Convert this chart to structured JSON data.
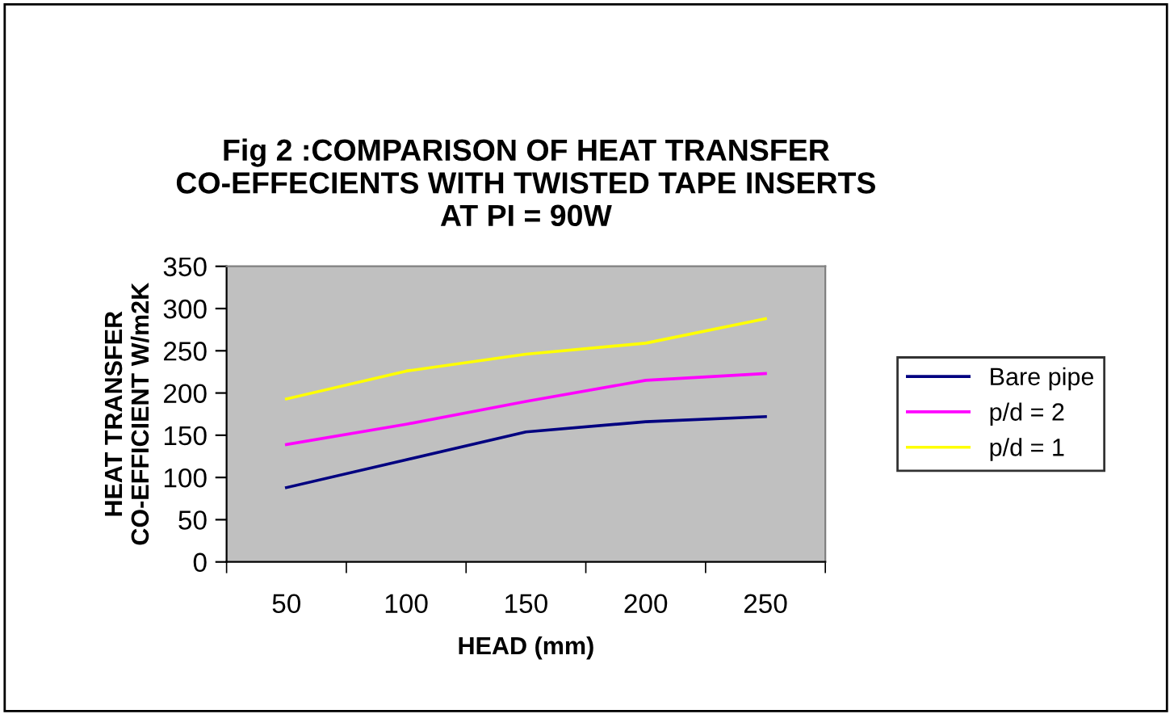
{
  "chart_data": {
    "type": "line",
    "title": "Fig 2 :COMPARISON OF HEAT TRANSFER\nCO-EFFECIENTS WITH TWISTED TAPE INSERTS\nAT PI = 90W",
    "xlabel": "HEAD (mm)",
    "ylabel": "HEAT TRANSFER\nCO-EFFICIENT W/m2K",
    "categories": [
      "50",
      "100",
      "150",
      "200",
      "250"
    ],
    "series": [
      {
        "name": "Bare pipe",
        "color": "#000080",
        "values": [
          88,
          121,
          154,
          166,
          172
        ]
      },
      {
        "name": "p/d = 2",
        "color": "#ff00ff",
        "values": [
          139,
          163,
          190,
          215,
          223
        ]
      },
      {
        "name": "p/d = 1",
        "color": "#ffff00",
        "values": [
          193,
          226,
          246,
          259,
          288
        ]
      }
    ],
    "ylim": [
      0,
      350
    ],
    "yticks": [
      0,
      50,
      100,
      150,
      200,
      250,
      300,
      350
    ],
    "grid": false,
    "legend": "right",
    "marker": "none",
    "line_style": "solid"
  }
}
